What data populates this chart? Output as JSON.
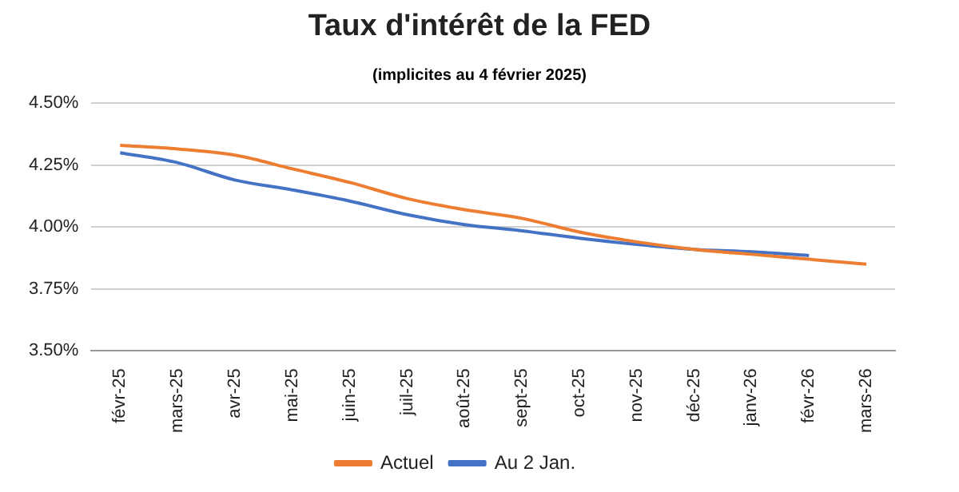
{
  "chart_data": {
    "type": "line",
    "title": "Taux d'intérêt de la FED",
    "subtitle": "(implicites au 4 février 2025)",
    "categories": [
      "févr-25",
      "mars-25",
      "avr-25",
      "mai-25",
      "juin-25",
      "juil-25",
      "août-25",
      "sept-25",
      "oct-25",
      "nov-25",
      "déc-25",
      "janv-26",
      "févr-26",
      "mars-26"
    ],
    "series": [
      {
        "name": "Actuel",
        "color": "#ed7d31",
        "values": [
          4.33,
          4.315,
          4.29,
          4.235,
          4.18,
          4.115,
          4.07,
          4.035,
          3.98,
          3.94,
          3.91,
          3.89,
          3.87,
          3.85
        ]
      },
      {
        "name": "Au 2 Jan.",
        "color": "#4472c4",
        "values": [
          4.3,
          4.26,
          4.19,
          4.15,
          4.105,
          4.05,
          4.01,
          3.985,
          3.955,
          3.93,
          3.91,
          3.9,
          3.885,
          null
        ]
      }
    ],
    "ylim": [
      3.5,
      4.5
    ],
    "yticks": [
      {
        "value": 3.5,
        "label": "3.50%"
      },
      {
        "value": 3.75,
        "label": "3.75%"
      },
      {
        "value": 4.0,
        "label": "4.00%"
      },
      {
        "value": 4.25,
        "label": "4.25%"
      },
      {
        "value": 4.5,
        "label": "4.50%"
      }
    ],
    "grid": "y",
    "legend": "bottom",
    "marker": "none",
    "line_style": "solid"
  }
}
